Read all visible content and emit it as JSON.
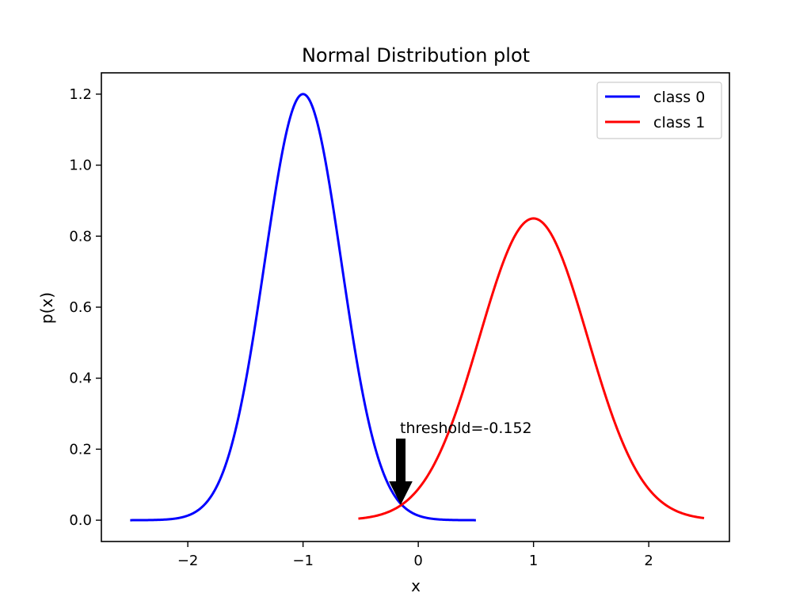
{
  "chart_data": {
    "type": "line",
    "title": "Normal Distribution plot",
    "xlabel": "x",
    "ylabel": "p(x)",
    "xlim": [
      -2.75,
      2.7
    ],
    "ylim": [
      -0.06,
      1.26
    ],
    "x_ticks": [
      -2,
      -1,
      0,
      1,
      2
    ],
    "x_tick_labels": [
      "−2",
      "−1",
      "0",
      "1",
      "2"
    ],
    "y_ticks": [
      0.0,
      0.2,
      0.4,
      0.6,
      0.8,
      1.0,
      1.2
    ],
    "y_tick_labels": [
      "0.0",
      "0.2",
      "0.4",
      "0.6",
      "0.8",
      "1.0",
      "1.2"
    ],
    "grid": false,
    "legend_position": "top-right",
    "series": [
      {
        "name": "class 0",
        "color": "#0000ff",
        "distribution": "normal",
        "mean": -1.0,
        "std": 0.3324,
        "x_range": [
          -2.5,
          0.5
        ],
        "peak_value": 1.2
      },
      {
        "name": "class 1",
        "color": "#ff0000",
        "distribution": "normal",
        "mean": 1.0,
        "std": 0.4694,
        "x_range": [
          -0.52,
          2.48
        ],
        "peak_value": 0.85
      }
    ],
    "annotation": {
      "text": "threshold=-0.152",
      "x": -0.152,
      "y": 0.046,
      "arrow_color": "#000000"
    }
  }
}
